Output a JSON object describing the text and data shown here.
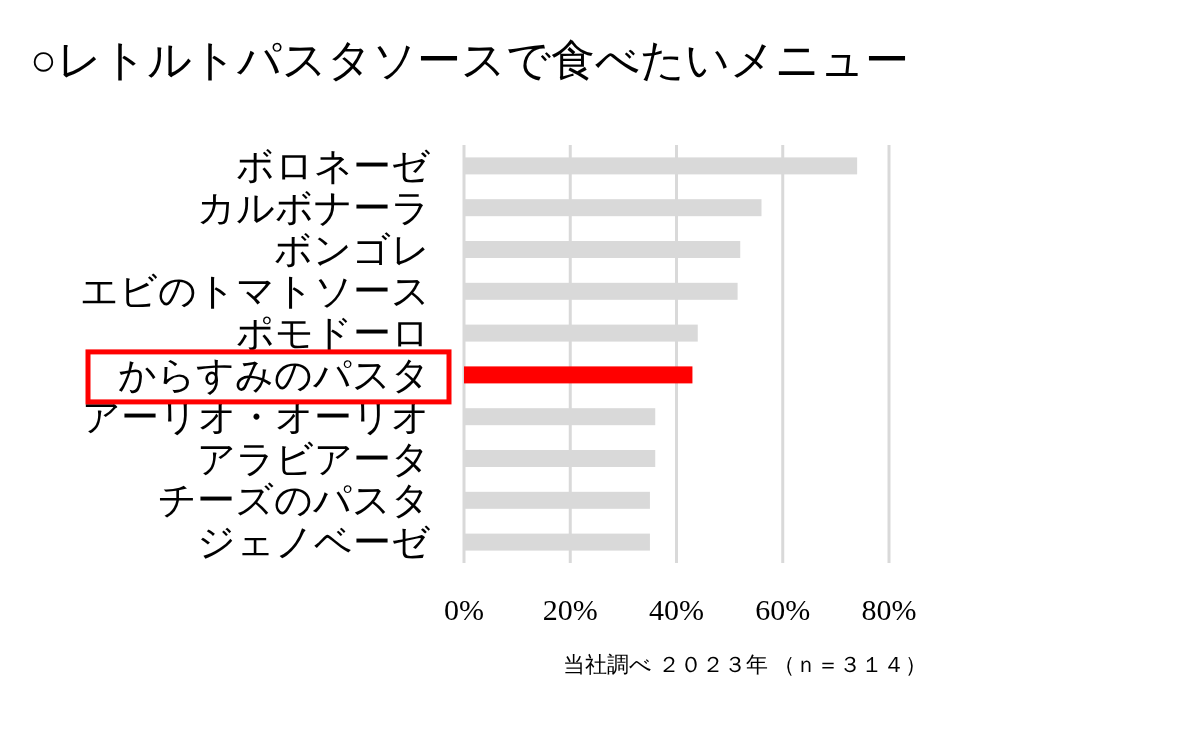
{
  "chart_data": {
    "type": "bar",
    "orientation": "horizontal",
    "title": "○レトルトパスタソースで食べたいメニュー",
    "categories": [
      "ボロネーゼ",
      "カルボナーラ",
      "ボンゴレ",
      "エビのトマトソース",
      "ポモドーロ",
      "からすみのパスタ",
      "アーリオ・オーリオ",
      "アラビアータ",
      "チーズのパスタ",
      "ジェノベーゼ"
    ],
    "values": [
      74,
      56,
      52,
      51.5,
      44,
      43,
      36,
      36,
      35,
      35
    ],
    "colors": [
      "#d9d9d9",
      "#d9d9d9",
      "#d9d9d9",
      "#d9d9d9",
      "#d9d9d9",
      "#ff0000",
      "#d9d9d9",
      "#d9d9d9",
      "#d9d9d9",
      "#d9d9d9"
    ],
    "xlim": [
      0,
      80
    ],
    "xticks": [
      {
        "value": 0,
        "label": "0%"
      },
      {
        "value": 20,
        "label": "20%"
      },
      {
        "value": 40,
        "label": "40%"
      },
      {
        "value": 60,
        "label": "60%"
      },
      {
        "value": 80,
        "label": "80%"
      }
    ],
    "grid": "x",
    "annotations": [
      "当社調べ ２０２３年 （ｎ＝３１４）"
    ]
  }
}
